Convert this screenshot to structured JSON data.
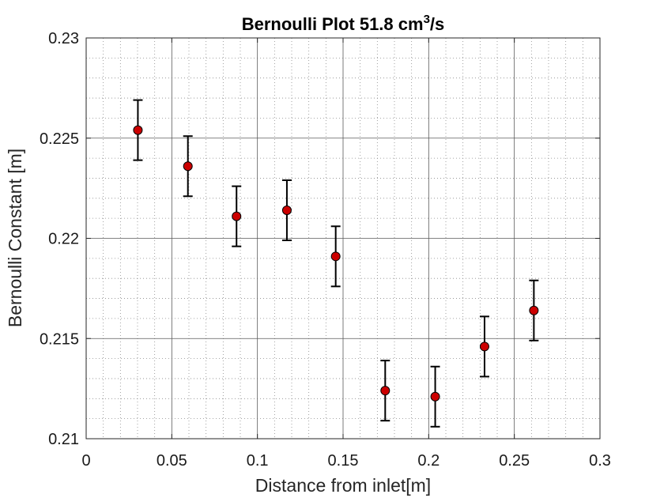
{
  "chart_data": {
    "type": "scatter",
    "title": "Bernoulli Plot 51.8 cm",
    "title_sup": "3",
    "title_suffix": "/s",
    "xlabel": "Distance from inlet[m]",
    "ylabel": "Bernoulli Constant [m]",
    "xlim": [
      0,
      0.3
    ],
    "ylim": [
      0.21,
      0.23
    ],
    "xticks": [
      0,
      0.05,
      0.1,
      0.15,
      0.2,
      0.25,
      0.3
    ],
    "xtick_labels": [
      "0",
      "0.05",
      "0.1",
      "0.15",
      "0.2",
      "0.25",
      "0.3"
    ],
    "yticks": [
      0.21,
      0.215,
      0.22,
      0.225,
      0.23
    ],
    "ytick_labels": [
      "0.21",
      "0.215",
      "0.22",
      "0.225",
      "0.23"
    ],
    "grid": true,
    "minor_grid": true,
    "marker_color": "#cc0000",
    "marker_edge_color": "#000000",
    "errorbar_color": "#000000",
    "series": [
      {
        "x": [
          0.0302,
          0.0594,
          0.0878,
          0.1172,
          0.1457,
          0.1746,
          0.2038,
          0.2326,
          0.2614
        ],
        "y": [
          0.2254,
          0.2236,
          0.2211,
          0.2214,
          0.2191,
          0.2124,
          0.2121,
          0.2146,
          0.2164
        ],
        "error": [
          0.0015,
          0.0015,
          0.0015,
          0.0015,
          0.0015,
          0.0015,
          0.0015,
          0.0015,
          0.0015
        ]
      }
    ]
  }
}
